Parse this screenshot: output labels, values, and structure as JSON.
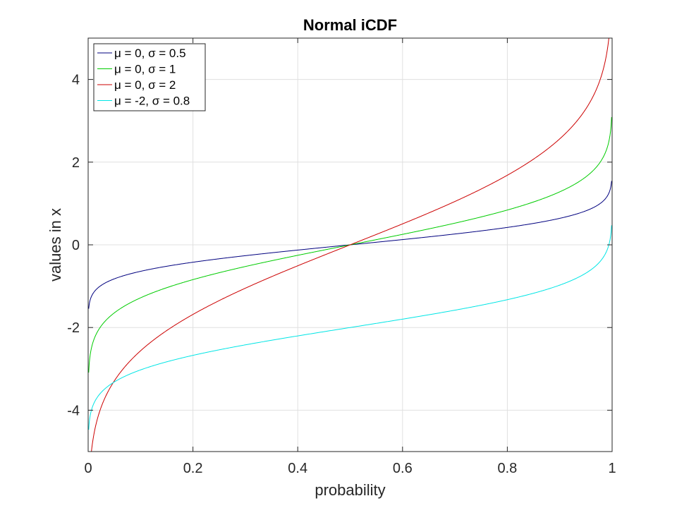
{
  "chart_data": {
    "type": "line",
    "title": "Normal iCDF",
    "xlabel": "probability",
    "ylabel": "values in x",
    "xlim": [
      0,
      1
    ],
    "ylim": [
      -5,
      5
    ],
    "xticks": [
      0,
      0.2,
      0.4,
      0.6,
      0.8,
      1
    ],
    "xtick_labels": [
      "0",
      "0.2",
      "0.4",
      "0.6",
      "0.8",
      "1"
    ],
    "yticks": [
      -4,
      -2,
      0,
      2,
      4
    ],
    "ytick_labels": [
      "-4",
      "-2",
      "0",
      "2",
      "4"
    ],
    "grid": true,
    "legend_position": "top-left",
    "series": [
      {
        "name": "μ = 0, σ = 0.5",
        "mu": 0,
        "sigma": 0.5,
        "color": "#00007f"
      },
      {
        "name": "μ = 0, σ = 1",
        "mu": 0,
        "sigma": 1,
        "color": "#00cc00"
      },
      {
        "name": "μ = 0, σ = 2",
        "mu": 0,
        "sigma": 2,
        "color": "#cc0000"
      },
      {
        "name": "μ = -2, σ = 0.8",
        "mu": -2,
        "sigma": 0.8,
        "color": "#00e5e5"
      }
    ]
  }
}
